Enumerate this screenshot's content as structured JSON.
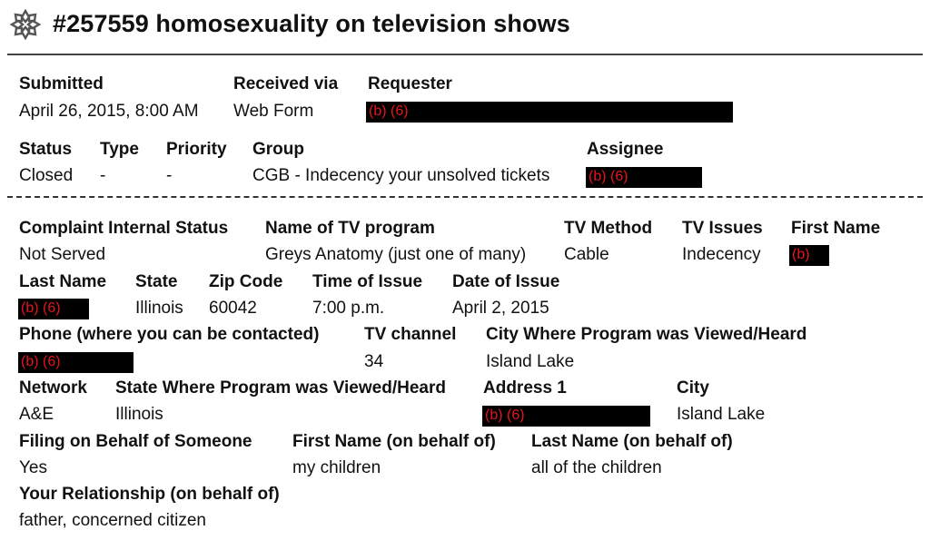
{
  "header": {
    "title": "#257559 homosexuality on television shows",
    "logo_icon": "ticket-flower-logo-icon"
  },
  "top": {
    "submitted": {
      "label": "Submitted",
      "value": "April 26, 2015, 8:00 AM"
    },
    "received_via": {
      "label": "Received via",
      "value": "Web Form"
    },
    "requester": {
      "label": "Requester",
      "value": "(b) (6)"
    },
    "status": {
      "label": "Status",
      "value": "Closed"
    },
    "type": {
      "label": "Type",
      "value": "-"
    },
    "priority": {
      "label": "Priority",
      "value": "-"
    },
    "group": {
      "label": "Group",
      "value": "CGB - Indecency your unsolved tickets"
    },
    "assignee": {
      "label": "Assignee",
      "value": "(b) (6)"
    }
  },
  "details": {
    "complaint_internal_status": {
      "label": "Complaint Internal Status",
      "value": "Not Served"
    },
    "tv_program": {
      "label": "Name of TV program",
      "value": "Greys Anatomy (just one of many)"
    },
    "tv_method": {
      "label": "TV Method",
      "value": "Cable"
    },
    "tv_issues": {
      "label": "TV Issues",
      "value": "Indecency"
    },
    "first_name": {
      "label": "First Name",
      "value": "(b)"
    },
    "last_name": {
      "label": "Last Name",
      "value": "(b) (6)"
    },
    "state": {
      "label": "State",
      "value": "Illinois"
    },
    "zip_code": {
      "label": "Zip Code",
      "value": "60042"
    },
    "time_of_issue": {
      "label": "Time of Issue",
      "value": "7:00 p.m."
    },
    "date_of_issue": {
      "label": "Date of Issue",
      "value": "April 2, 2015"
    },
    "phone": {
      "label": "Phone (where you can be contacted)",
      "value": "(b) (6)"
    },
    "tv_channel": {
      "label": "TV channel",
      "value": "34"
    },
    "city_viewed": {
      "label": "City Where Program was Viewed/Heard",
      "value": "Island Lake"
    },
    "network": {
      "label": "Network",
      "value": "A&E"
    },
    "state_viewed": {
      "label": "State Where Program was Viewed/Heard",
      "value": "Illinois"
    },
    "address1": {
      "label": "Address 1",
      "value": "(b) (6)"
    },
    "city": {
      "label": "City",
      "value": "Island Lake"
    },
    "filing_on_behalf": {
      "label": "Filing on Behalf of Someone",
      "value": "Yes"
    },
    "first_name_behalf": {
      "label": "First Name (on behalf of)",
      "value": "my children"
    },
    "last_name_behalf": {
      "label": "Last Name (on behalf of)",
      "value": "all of the children"
    },
    "relationship": {
      "label": "Your Relationship (on behalf of)",
      "value": "father, concerned citizen"
    }
  },
  "colors": {
    "redaction_bg": "#000000",
    "redaction_text": "#e8141b"
  }
}
